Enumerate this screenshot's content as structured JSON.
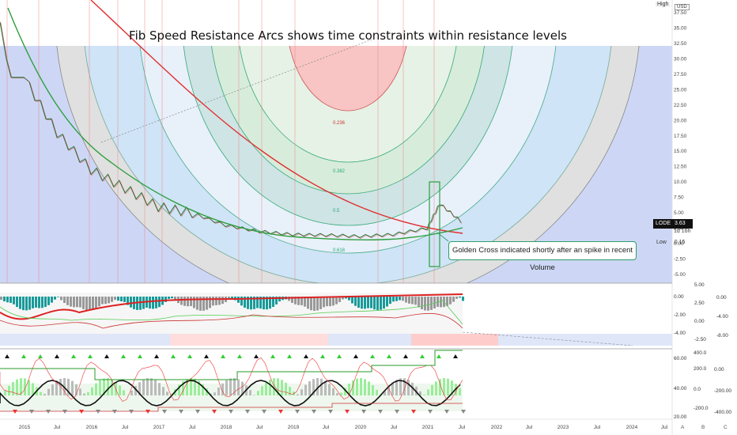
{
  "title": "Fib Speed Resistance Arcs shows time constraints within resistance levels",
  "annotation": "Golden Cross indicated shortly after an spike in recent Volume",
  "price_axis_ticks": [
    "37.50",
    "35.00",
    "32.50",
    "30.00",
    "27.50",
    "25.00",
    "22.50",
    "20.00",
    "17.50",
    "15.00",
    "12.50",
    "10.00",
    "7.50",
    "5.00",
    "2.50",
    "0.00",
    "-2.50",
    "-5.00"
  ],
  "time_axis_ticks": [
    "2015",
    "Jul",
    "2016",
    "Jul",
    "2017",
    "Jul",
    "2018",
    "Jul",
    "2019",
    "Jul",
    "2020",
    "Jul",
    "2021",
    "Jul",
    "2022",
    "Jul",
    "2023",
    "Jul",
    "2024",
    "Jul"
  ],
  "bottom_letters": [
    "A",
    "B",
    "C"
  ],
  "symbol_label": "LODE",
  "last_price": "3.63",
  "last_price_sub": "1d 16h",
  "high_label": "High",
  "currency_label": "USD",
  "low_label": "Low",
  "low_value": "0.15",
  "fib_labels": [
    "0.236",
    "0.382",
    "0.5",
    "0.618"
  ],
  "osc1_left_ticks": [
    "0.00",
    "-2.00",
    "-4.00"
  ],
  "osc1_right_ticks": [
    "5.00",
    "2.50",
    "0.00",
    "-2.50"
  ],
  "osc1_right_ticks2": [
    "0.00",
    "-4.00",
    "-8.00"
  ],
  "osc2_left_ticks": [
    "60.00",
    "40.00",
    "20.00"
  ],
  "osc2_mid_ticks": [
    "400.0",
    "200.0",
    "0.0",
    "-200.0"
  ],
  "osc2_right_ticks": [
    "0.00",
    "-200.00",
    "-400.00"
  ],
  "colors": {
    "ma_red": "#e03030",
    "ma_green": "#2e9e3e",
    "arc_red": "#f8c4c4",
    "arc_green": "#cfe8da",
    "arc_teal": "#bfe0e0",
    "arc_blue": "#d8e8f8",
    "arc_grey": "#e0e0e0",
    "bg_blue": "#cdd7f5"
  },
  "chart_data": {
    "type": "line",
    "title": "Fib Speed Resistance Arcs shows time constraints within resistance levels",
    "xlabel": "",
    "ylabel": "",
    "x": [
      "2015",
      "2015-07",
      "2016",
      "2016-07",
      "2017",
      "2017-07",
      "2018",
      "2018-07",
      "2019",
      "2019-07",
      "2020",
      "2020-07",
      "2021",
      "2021-03",
      "2021-07"
    ],
    "series": [
      {
        "name": "",
        "values": [
          27,
          18,
          12,
          9,
          6,
          5,
          3,
          2,
          1.5,
          1.4,
          1.2,
          1.5,
          2.5,
          6.5,
          3.63
        ]
      }
    ],
    "ylim": [
      -5,
      37.5
    ],
    "fib_levels": [
      0.236,
      0.382,
      0.5,
      0.618
    ],
    "last": 3.63,
    "low": 0.15
  }
}
